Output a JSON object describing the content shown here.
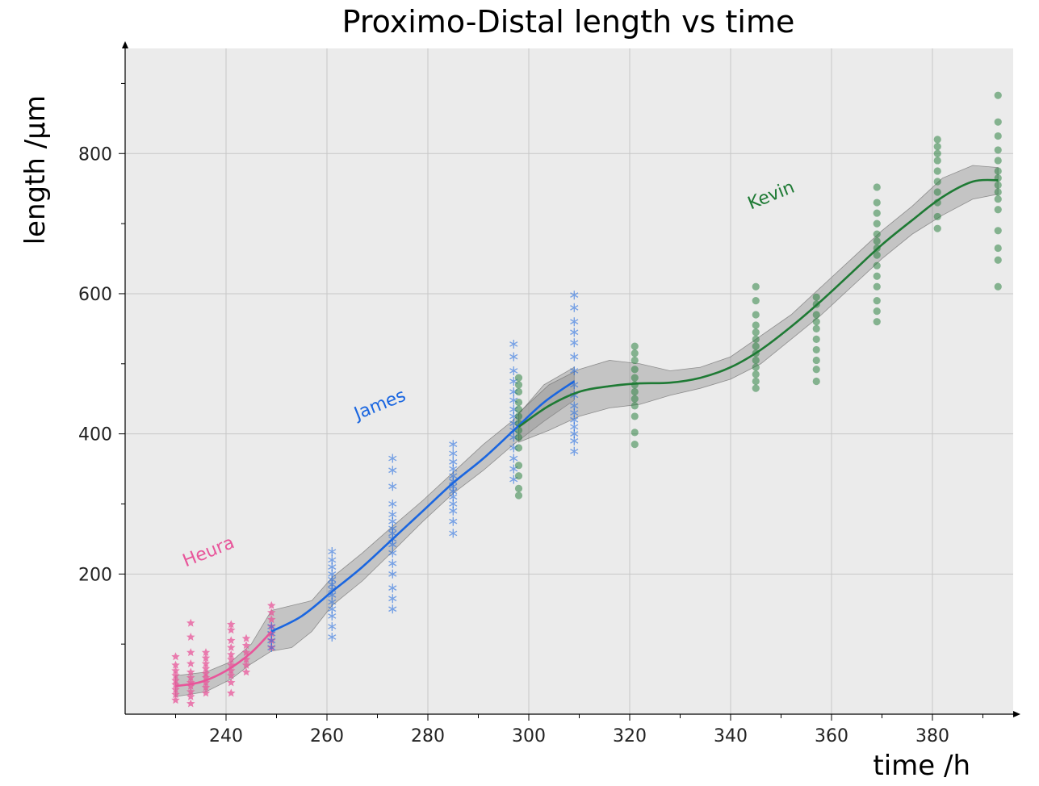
{
  "chart_data": {
    "type": "scatter",
    "title": "Proximo-Distal length vs time",
    "xlabel": "time /h",
    "ylabel": "length /μm",
    "xlim": [
      220,
      396
    ],
    "ylim": [
      0,
      950
    ],
    "x_ticks": [
      240,
      260,
      280,
      300,
      320,
      340,
      360,
      380
    ],
    "y_ticks": [
      200,
      400,
      600,
      800
    ],
    "grid": true,
    "background": "#ebebeb",
    "series": [
      {
        "name": "Heura",
        "color": "#e8559a",
        "marker": "star",
        "points": [
          {
            "x": 230,
            "y": [
              20,
              28,
              35,
              42,
              48,
              55,
              62,
              70,
              82
            ]
          },
          {
            "x": 233,
            "y": [
              15,
              25,
              32,
              40,
              45,
              52,
              60,
              72,
              88,
              110,
              130
            ]
          },
          {
            "x": 236,
            "y": [
              30,
              38,
              45,
              52,
              58,
              65,
              72,
              80,
              88
            ]
          },
          {
            "x": 241,
            "y": [
              30,
              45,
              55,
              62,
              70,
              78,
              85,
              95,
              105,
              120,
              128
            ]
          },
          {
            "x": 244,
            "y": [
              60,
              70,
              78,
              88,
              98,
              108
            ]
          },
          {
            "x": 249,
            "y": [
              95,
              105,
              115,
              125,
              135,
              145,
              155
            ]
          }
        ],
        "fit": [
          [
            230,
            40
          ],
          [
            235,
            46
          ],
          [
            240,
            62
          ],
          [
            245,
            88
          ],
          [
            249,
            118
          ]
        ],
        "label_text": "Heura"
      },
      {
        "name": "James",
        "color": "#1a66e0",
        "marker": "asterisk",
        "points": [
          {
            "x": 249,
            "y": [
              95,
              105,
              115,
              125
            ]
          },
          {
            "x": 261,
            "y": [
              110,
              125,
              140,
              150,
              160,
              170,
              178,
              185,
              192,
              200,
              210,
              220,
              232
            ]
          },
          {
            "x": 273,
            "y": [
              150,
              165,
              180,
              200,
              215,
              230,
              242,
              250,
              258,
              265,
              275,
              285,
              300,
              325,
              348,
              365
            ]
          },
          {
            "x": 285,
            "y": [
              258,
              275,
              290,
              300,
              310,
              318,
              325,
              332,
              340,
              350,
              360,
              372,
              385
            ]
          },
          {
            "x": 297,
            "y": [
              335,
              350,
              365,
              380,
              395,
              405,
              415,
              425,
              435,
              448,
              460,
              475,
              490,
              510,
              528
            ]
          },
          {
            "x": 309,
            "y": [
              375,
              390,
              400,
              410,
              420,
              430,
              440,
              455,
              470,
              490,
              510,
              530,
              545,
              560,
              580,
              598
            ]
          }
        ],
        "fit": [
          [
            249,
            118
          ],
          [
            255,
            140
          ],
          [
            261,
            175
          ],
          [
            267,
            210
          ],
          [
            273,
            250
          ],
          [
            279,
            290
          ],
          [
            285,
            330
          ],
          [
            291,
            365
          ],
          [
            297,
            405
          ],
          [
            303,
            445
          ],
          [
            309,
            475
          ]
        ],
        "label_text": "James"
      },
      {
        "name": "Kevin",
        "color": "#1e7a34",
        "marker": "circle",
        "points": [
          {
            "x": 298,
            "y": [
              312,
              322,
              340,
              355,
              380,
              395,
              405,
              415,
              425,
              435,
              445,
              460,
              470,
              480
            ]
          },
          {
            "x": 321,
            "y": [
              385,
              402,
              425,
              440,
              450,
              460,
              470,
              480,
              492,
              505,
              515,
              525
            ]
          },
          {
            "x": 345,
            "y": [
              465,
              475,
              485,
              495,
              505,
              515,
              525,
              535,
              545,
              555,
              570,
              590,
              610
            ]
          },
          {
            "x": 357,
            "y": [
              475,
              492,
              505,
              520,
              535,
              550,
              560,
              570,
              585,
              595
            ]
          },
          {
            "x": 369,
            "y": [
              560,
              575,
              590,
              610,
              625,
              640,
              655,
              665,
              675,
              685,
              700,
              715,
              730,
              752
            ]
          },
          {
            "x": 381,
            "y": [
              693,
              710,
              730,
              745,
              760,
              775,
              790,
              800,
              810,
              820
            ]
          },
          {
            "x": 393,
            "y": [
              610,
              648,
              665,
              690,
              720,
              735,
              745,
              755,
              765,
              775,
              790,
              805,
              825,
              845,
              883
            ]
          }
        ],
        "fit": [
          [
            298,
            410
          ],
          [
            304,
            440
          ],
          [
            310,
            460
          ],
          [
            316,
            468
          ],
          [
            322,
            472
          ],
          [
            328,
            473
          ],
          [
            334,
            480
          ],
          [
            340,
            495
          ],
          [
            346,
            520
          ],
          [
            352,
            553
          ],
          [
            358,
            590
          ],
          [
            364,
            630
          ],
          [
            370,
            670
          ],
          [
            376,
            705
          ],
          [
            382,
            738
          ],
          [
            388,
            760
          ],
          [
            393,
            762
          ]
        ],
        "label_text": "Kevin"
      }
    ],
    "bands": [
      {
        "color": "#8a8a8a",
        "upper": [
          [
            230,
            55
          ],
          [
            236,
            60
          ],
          [
            241,
            75
          ],
          [
            245,
            100
          ],
          [
            249,
            148
          ],
          [
            253,
            155
          ],
          [
            257,
            162
          ],
          [
            261,
            195
          ],
          [
            267,
            230
          ],
          [
            273,
            268
          ],
          [
            279,
            305
          ],
          [
            285,
            345
          ],
          [
            291,
            385
          ],
          [
            297,
            420
          ],
          [
            303,
            470
          ],
          [
            309,
            495
          ]
        ],
        "lower": [
          [
            230,
            25
          ],
          [
            236,
            32
          ],
          [
            241,
            50
          ],
          [
            245,
            72
          ],
          [
            249,
            90
          ],
          [
            253,
            95
          ],
          [
            257,
            118
          ],
          [
            261,
            155
          ],
          [
            267,
            190
          ],
          [
            273,
            232
          ],
          [
            279,
            275
          ],
          [
            285,
            315
          ],
          [
            291,
            348
          ],
          [
            297,
            385
          ],
          [
            303,
            418
          ],
          [
            309,
            448
          ]
        ]
      },
      {
        "color": "#8a8a8a",
        "upper": [
          [
            298,
            430
          ],
          [
            304,
            470
          ],
          [
            310,
            492
          ],
          [
            316,
            505
          ],
          [
            322,
            500
          ],
          [
            328,
            490
          ],
          [
            334,
            495
          ],
          [
            340,
            510
          ],
          [
            346,
            540
          ],
          [
            352,
            570
          ],
          [
            358,
            610
          ],
          [
            364,
            650
          ],
          [
            370,
            690
          ],
          [
            376,
            725
          ],
          [
            382,
            765
          ],
          [
            388,
            783
          ],
          [
            393,
            780
          ]
        ],
        "lower": [
          [
            298,
            388
          ],
          [
            304,
            405
          ],
          [
            310,
            425
          ],
          [
            316,
            437
          ],
          [
            322,
            442
          ],
          [
            328,
            455
          ],
          [
            334,
            465
          ],
          [
            340,
            478
          ],
          [
            346,
            500
          ],
          [
            352,
            535
          ],
          [
            358,
            570
          ],
          [
            364,
            610
          ],
          [
            370,
            650
          ],
          [
            376,
            685
          ],
          [
            382,
            712
          ],
          [
            388,
            735
          ],
          [
            393,
            742
          ]
        ]
      }
    ],
    "annotations": [
      {
        "text": "Heura",
        "x": 232,
        "y": 210,
        "rotate": -22,
        "color": "#e8559a"
      },
      {
        "text": "James",
        "x": 266,
        "y": 420,
        "rotate": -22,
        "color": "#1a66e0"
      },
      {
        "text": "Kevin",
        "x": 344,
        "y": 720,
        "rotate": -22,
        "color": "#1e7a34"
      }
    ]
  }
}
